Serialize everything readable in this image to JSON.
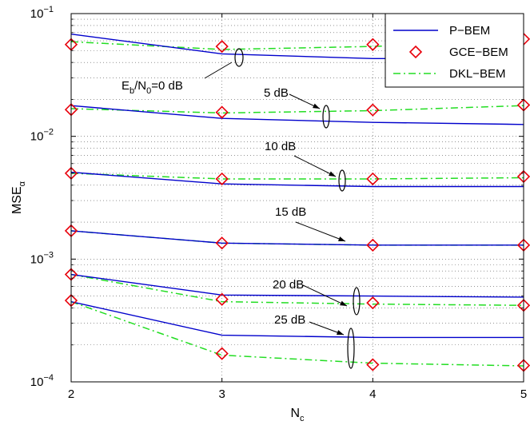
{
  "chart_data": {
    "type": "line",
    "xlabel": "N",
    "xlabel_sub": "c",
    "ylabel": "MSE",
    "ylabel_sub": "α",
    "x": [
      2,
      3,
      4,
      5
    ],
    "xlim": [
      2,
      5
    ],
    "ylim": [
      0.0001,
      0.1
    ],
    "yscale": "log",
    "grid": true,
    "legend_position": "top-right",
    "x_tick_labels": [
      "2",
      "3",
      "4",
      "5"
    ],
    "y_ticks": [
      {
        "value": 0.1,
        "base": "10",
        "exp": "−1"
      },
      {
        "value": 0.01,
        "base": "10",
        "exp": "−2"
      },
      {
        "value": 0.001,
        "base": "10",
        "exp": "−3"
      },
      {
        "value": 0.0001,
        "base": "10",
        "exp": "−4"
      }
    ],
    "series_styles": [
      {
        "name": "P−BEM",
        "color": "#0000cc",
        "line": "solid",
        "marker": "none"
      },
      {
        "name": "GCE−BEM",
        "color": "#e8000b",
        "line": "none",
        "marker": "diamond"
      },
      {
        "name": "DKL−BEM",
        "color": "#22dd22",
        "line": "dashdot",
        "marker": "none"
      }
    ],
    "groups": [
      {
        "snr": "Eb/N0=0 dB",
        "P-BEM": [
          0.068,
          0.047,
          0.043,
          0.043
        ],
        "GCE-BEM": [
          0.056,
          0.054,
          0.056,
          0.062
        ],
        "DKL-BEM": [
          0.059,
          0.051,
          0.054,
          0.059
        ]
      },
      {
        "snr": "5 dB",
        "P-BEM": [
          0.0178,
          0.014,
          0.013,
          0.0125
        ],
        "GCE-BEM": [
          0.0165,
          0.0157,
          0.0164,
          0.018
        ],
        "DKL-BEM": [
          0.0168,
          0.0155,
          0.0162,
          0.0178
        ]
      },
      {
        "snr": "10 dB",
        "P-BEM": [
          0.0051,
          0.0041,
          0.0039,
          0.0039
        ],
        "GCE-BEM": [
          0.005,
          0.0045,
          0.0045,
          0.0047
        ],
        "DKL-BEM": [
          0.005,
          0.0045,
          0.0045,
          0.0046
        ]
      },
      {
        "snr": "15 dB",
        "P-BEM": [
          0.0017,
          0.00135,
          0.0013,
          0.0013
        ],
        "GCE-BEM": [
          0.0017,
          0.00135,
          0.0013,
          0.0013
        ],
        "DKL-BEM": [
          0.0017,
          0.00135,
          0.0013,
          0.0013
        ]
      },
      {
        "snr": "20 dB",
        "P-BEM": [
          0.00075,
          0.00051,
          0.0005,
          0.00049
        ],
        "GCE-BEM": [
          0.00075,
          0.00047,
          0.00044,
          0.00042
        ],
        "DKL-BEM": [
          0.00075,
          0.00045,
          0.00043,
          0.00042
        ]
      },
      {
        "snr": "25 dB",
        "P-BEM": [
          0.00045,
          0.00024,
          0.00023,
          0.00023
        ],
        "GCE-BEM": [
          0.00046,
          0.00017,
          0.000138,
          0.000136
        ],
        "DKL-BEM": [
          0.00045,
          0.000165,
          0.000142,
          0.000135
        ]
      }
    ],
    "annotations": [
      {
        "text_main": "E",
        "sub1": "b",
        "mid": "/N",
        "sub2": "0",
        "tail": "=0 dB"
      },
      {
        "text": "5 dB"
      },
      {
        "text": "10 dB"
      },
      {
        "text": "15 dB"
      },
      {
        "text": "20 dB"
      },
      {
        "text": "25 dB"
      }
    ]
  }
}
